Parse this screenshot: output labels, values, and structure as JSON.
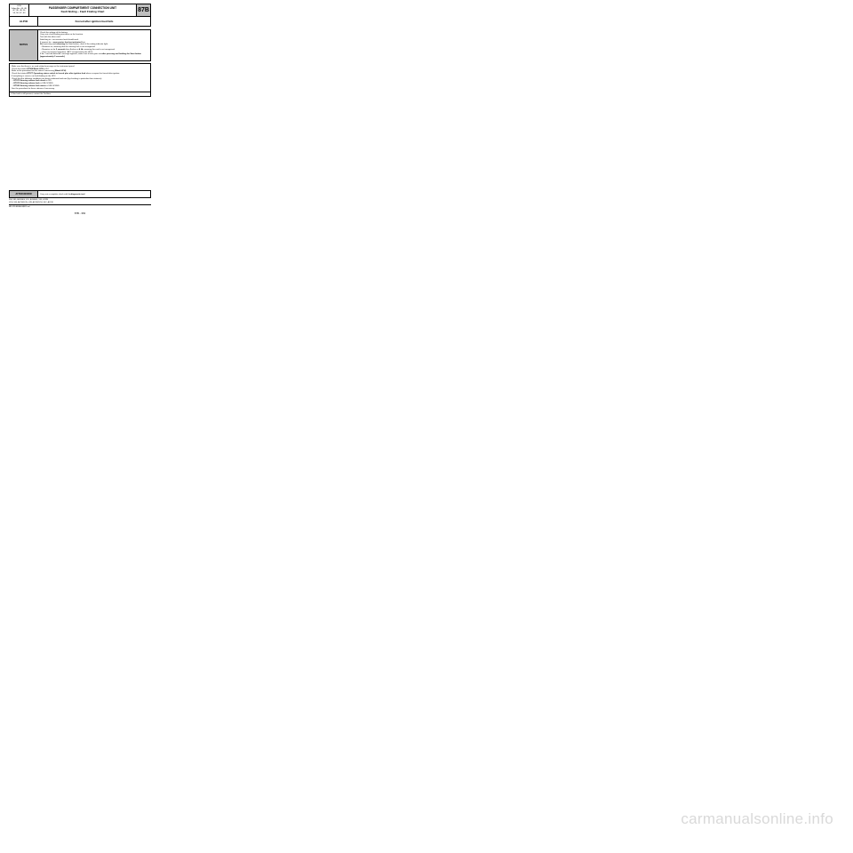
{
  "header": {
    "left_lines": [
      "UCH",
      "Vdiag No.: 44, 48,",
      "4C, 4D, 4F, 50,",
      "54, 58, 5C, 60"
    ],
    "title1": "PASSENGER COMPARTMENT CONNECTION UNIT",
    "title2": "Fault finding – Fault Finding Chart",
    "code": "87B"
  },
  "row2": {
    "left": "ALP40",
    "right": "Forced after ignition feed fails"
  },
  "row3": {
    "left": "NOTES",
    "right_html": "Check the voltage of the battery.<br>Carry out a fault finding procedure on the function.<br>Test with the other card.<br>Switching to + accessories feed should work.<br>If request for + <span class='b'>accessories feed not activated</span> first.<br>After pressing and <span class='b'>releasing</span> the Start button, check if the airbag indicator light:<br>&nbsp;– Remains on, meaning that the steering lock is not recognised.<br>&nbsp;– Remains on for <span class='b'>3 seconds</span> then flashes at <span class='b'>4 Hz</span>, meaning the card is not recognised.<br>&nbsp;– Goes out (normal operation +APC recognised by the UPC).<br>If the &quot;card not detected&quot; message appears, make sure it then goes out <span class='b'>after pressing and holding the Start button (approximately 3 seconds)</span>."
  },
  "row4_html": "Make sure that there is no card related message on the instrument panel.<br>Check that status <span class='b'>ET008 Blank UCH</span> is NO.<br>Refer to the procedure for this status if necessary (<span class='b'>Blank UCH</span>).<br>Check that status <span class='b'>ET077 Operating status switch in forced plus after ignition feed</span> when a request for forced after ignition.<br>If everything is correct, run fault finding on the UPC.<br>Check that the following conditions are being confirmed and met (by checking in particular their statuses):<br>&nbsp;– <span class='b'>ET073 Steering column lock check</span> is NO.<br>&nbsp;– <span class='b'>ET072 Steering column lock</span> is UNLOCKED.<br>&nbsp;– <span class='b'>ET185 Steering column lock status</span> is UNLOCKED.<br>See the procedure for these statuses if necessary.",
  "row5": "If the fault is still present, contact the Techline.",
  "footer": {
    "left": "AFTER REPAIR",
    "right_html": "Carry out a complete check with the <span class='b'>diagnostic tool</span>.",
    "meta": [
      "X84, X85, B/K/S/E/V, X91, BCM84/X, X95, X47/M",
      "UCH_V44_ALP40/UCH_V48_ALP40/UCH_V4C_ALP40",
      "MR-325-B84B000$891.mif"
    ],
    "page": "87B - 363"
  },
  "watermark": "carmanualsonline.info"
}
